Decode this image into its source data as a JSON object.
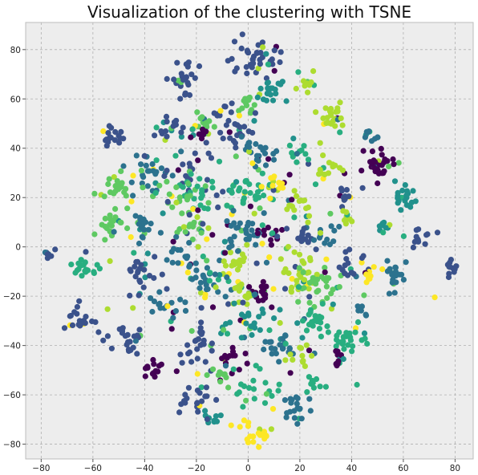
{
  "chart_data": {
    "type": "scatter",
    "title": "Visualization of the clustering with TSNE",
    "xlabel": "",
    "ylabel": "",
    "xlim": [
      -86,
      87
    ],
    "ylim": [
      -86,
      91
    ],
    "xticks": [
      -80,
      -60,
      -40,
      -20,
      0,
      20,
      40,
      60,
      80
    ],
    "yticks": [
      -80,
      -60,
      -40,
      -20,
      0,
      20,
      40,
      60,
      80
    ],
    "grid": true,
    "legend": "none",
    "colormap": "viridis",
    "palette": [
      "#440154",
      "#3b528b",
      "#2c728e",
      "#21918c",
      "#28ae80",
      "#5ec962",
      "#addc30",
      "#fde725"
    ],
    "clusters": [
      {
        "x": 3,
        "y": 75,
        "spread": 4,
        "n": 40,
        "color": 1
      },
      {
        "x": 22,
        "y": 66,
        "spread": 2,
        "n": 10,
        "color": 6
      },
      {
        "x": -24,
        "y": 67,
        "spread": 3,
        "n": 25,
        "color": 1
      },
      {
        "x": 10,
        "y": 62,
        "spread": 3,
        "n": 20,
        "color": 3
      },
      {
        "x": -1,
        "y": 58,
        "spread": 2,
        "n": 12,
        "color": 5
      },
      {
        "x": 32,
        "y": 53,
        "spread": 3,
        "n": 25,
        "color": 6
      },
      {
        "x": -5,
        "y": 50,
        "spread": 5,
        "n": 30,
        "color": 1
      },
      {
        "x": -32,
        "y": 48,
        "spread": 3,
        "n": 20,
        "color": 1
      },
      {
        "x": -52,
        "y": 45,
        "spread": 2.5,
        "n": 18,
        "color": 1
      },
      {
        "x": -18,
        "y": 50,
        "spread": 2.5,
        "n": 15,
        "color": 5
      },
      {
        "x": 48,
        "y": 45,
        "spread": 2,
        "n": 10,
        "color": 2
      },
      {
        "x": 50,
        "y": 34,
        "spread": 3,
        "n": 30,
        "color": 0
      },
      {
        "x": -19,
        "y": 46,
        "spread": 2,
        "n": 10,
        "color": 0
      },
      {
        "x": 5,
        "y": 38,
        "spread": 4,
        "n": 25,
        "color": 2
      },
      {
        "x": 20,
        "y": 38,
        "spread": 2,
        "n": 10,
        "color": 4
      },
      {
        "x": 32,
        "y": 33,
        "spread": 3,
        "n": 12,
        "color": 6
      },
      {
        "x": -38,
        "y": 31,
        "spread": 4,
        "n": 25,
        "color": 2
      },
      {
        "x": -22,
        "y": 30,
        "spread": 5,
        "n": 20,
        "color": 1
      },
      {
        "x": -50,
        "y": 24,
        "spread": 3.5,
        "n": 25,
        "color": 5
      },
      {
        "x": -20,
        "y": 22,
        "spread": 4,
        "n": 25,
        "color": 4
      },
      {
        "x": -28,
        "y": 20,
        "spread": 4,
        "n": 18,
        "color": 5
      },
      {
        "x": 0,
        "y": 22,
        "spread": 4,
        "n": 30,
        "color": 4
      },
      {
        "x": 12,
        "y": 25,
        "spread": 2.5,
        "n": 12,
        "color": 7
      },
      {
        "x": 20,
        "y": 18,
        "spread": 3,
        "n": 15,
        "color": 6
      },
      {
        "x": 38,
        "y": 20,
        "spread": 3,
        "n": 10,
        "color": 1
      },
      {
        "x": 60,
        "y": 20,
        "spread": 3,
        "n": 20,
        "color": 3
      },
      {
        "x": -52,
        "y": 8,
        "spread": 3,
        "n": 20,
        "color": 5
      },
      {
        "x": -40,
        "y": 8,
        "spread": 3,
        "n": 18,
        "color": 2
      },
      {
        "x": -22,
        "y": 7,
        "spread": 3,
        "n": 15,
        "color": 5
      },
      {
        "x": 0,
        "y": 6,
        "spread": 4,
        "n": 25,
        "color": 2
      },
      {
        "x": 10,
        "y": 5,
        "spread": 2,
        "n": 12,
        "color": 0
      },
      {
        "x": 22,
        "y": 4,
        "spread": 3,
        "n": 15,
        "color": 1
      },
      {
        "x": 30,
        "y": 5,
        "spread": 2.5,
        "n": 12,
        "color": 2
      },
      {
        "x": 38,
        "y": 12,
        "spread": 2,
        "n": 10,
        "color": 6
      },
      {
        "x": 52,
        "y": 8,
        "spread": 2,
        "n": 10,
        "color": 3
      },
      {
        "x": 67,
        "y": 3,
        "spread": 2,
        "n": 12,
        "color": 1
      },
      {
        "x": -77,
        "y": -3,
        "spread": 1.5,
        "n": 8,
        "color": 1
      },
      {
        "x": -63,
        "y": -7,
        "spread": 3,
        "n": 20,
        "color": 4
      },
      {
        "x": -25,
        "y": -2,
        "spread": 3,
        "n": 15,
        "color": 2
      },
      {
        "x": -40,
        "y": -12,
        "spread": 4,
        "n": 20,
        "color": 1
      },
      {
        "x": -15,
        "y": -12,
        "spread": 4,
        "n": 25,
        "color": 2
      },
      {
        "x": -5,
        "y": -7,
        "spread": 2,
        "n": 12,
        "color": 6
      },
      {
        "x": 5,
        "y": -18,
        "spread": 2,
        "n": 15,
        "color": 0
      },
      {
        "x": 20,
        "y": -10,
        "spread": 4,
        "n": 25,
        "color": 6
      },
      {
        "x": 28,
        "y": -15,
        "spread": 4,
        "n": 25,
        "color": 5
      },
      {
        "x": 40,
        "y": -8,
        "spread": 3,
        "n": 15,
        "color": 1
      },
      {
        "x": 47,
        "y": -12,
        "spread": 1.5,
        "n": 8,
        "color": 7
      },
      {
        "x": 57,
        "y": -12,
        "spread": 3,
        "n": 20,
        "color": 2
      },
      {
        "x": 78,
        "y": -10,
        "spread": 2,
        "n": 12,
        "color": 1
      },
      {
        "x": -65,
        "y": -30,
        "spread": 3,
        "n": 20,
        "color": 1
      },
      {
        "x": -48,
        "y": -37,
        "spread": 3,
        "n": 22,
        "color": 1
      },
      {
        "x": -30,
        "y": -25,
        "spread": 3,
        "n": 15,
        "color": 2
      },
      {
        "x": -20,
        "y": -40,
        "spread": 4,
        "n": 25,
        "color": 1
      },
      {
        "x": -2,
        "y": -18,
        "spread": 2.5,
        "n": 15,
        "color": 6
      },
      {
        "x": 0,
        "y": -30,
        "spread": 4,
        "n": 25,
        "color": 3
      },
      {
        "x": 12,
        "y": -40,
        "spread": 3,
        "n": 20,
        "color": 2
      },
      {
        "x": 25,
        "y": -30,
        "spread": 4,
        "n": 20,
        "color": 4
      },
      {
        "x": 38,
        "y": -38,
        "spread": 3,
        "n": 25,
        "color": 4
      },
      {
        "x": 44,
        "y": -25,
        "spread": 2,
        "n": 10,
        "color": 2
      },
      {
        "x": -5,
        "y": -45,
        "spread": 3,
        "n": 15,
        "color": 0
      },
      {
        "x": 20,
        "y": -45,
        "spread": 3,
        "n": 12,
        "color": 6
      },
      {
        "x": -37,
        "y": -51,
        "spread": 2.5,
        "n": 15,
        "color": 0
      },
      {
        "x": -20,
        "y": -62,
        "spread": 3,
        "n": 20,
        "color": 1
      },
      {
        "x": 5,
        "y": -58,
        "spread": 4,
        "n": 20,
        "color": 4
      },
      {
        "x": 18,
        "y": -65,
        "spread": 3,
        "n": 20,
        "color": 2
      },
      {
        "x": 25,
        "y": -55,
        "spread": 2,
        "n": 10,
        "color": 4
      },
      {
        "x": -15,
        "y": -70,
        "spread": 2,
        "n": 10,
        "color": 3
      },
      {
        "x": 3,
        "y": -75,
        "spread": 3,
        "n": 20,
        "color": 7
      },
      {
        "x": 35,
        "y": -45,
        "spread": 2,
        "n": 10,
        "color": 0
      },
      {
        "x": -10,
        "y": -52,
        "spread": 2,
        "n": 10,
        "color": 5
      }
    ],
    "noise_points": 170
  }
}
